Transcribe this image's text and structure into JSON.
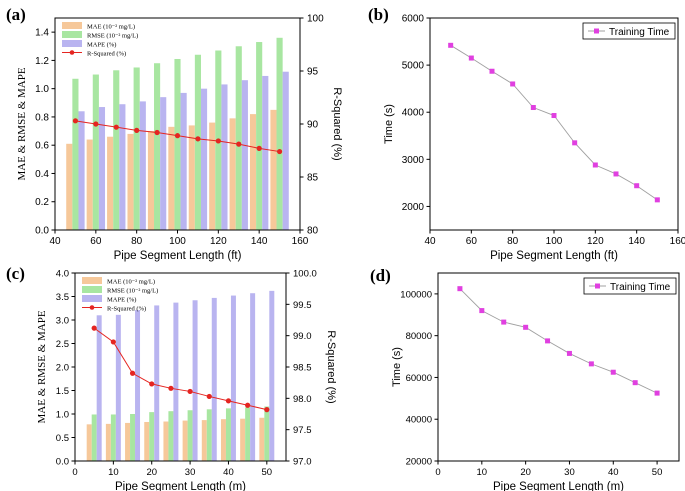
{
  "chart_data": [
    {
      "panel": "(a)",
      "type": "bar",
      "xlabel": "Pipe Segment Length (ft)",
      "ylabel": "MAE & RMSE & MAPE",
      "y2label": "R-Squared (%)",
      "xlim": [
        40,
        160
      ],
      "xticks": [
        40,
        60,
        80,
        100,
        120,
        140,
        160
      ],
      "ylim": [
        0,
        1.5
      ],
      "yticks": [
        "0.0",
        "0.2",
        "0.4",
        "0.6",
        "0.8",
        "1.0",
        "1.2",
        "1.4"
      ],
      "y2lim": [
        80,
        100
      ],
      "y2ticks": [
        "80",
        "85",
        "90",
        "95",
        "100"
      ],
      "categories": [
        50,
        60,
        70,
        80,
        90,
        100,
        110,
        120,
        130,
        140,
        150
      ],
      "bar_width": 3,
      "series": [
        {
          "name": "MAE (10⁻² mg/L)",
          "color": "#f6c89a",
          "values": [
            0.61,
            0.64,
            0.66,
            0.68,
            0.7,
            0.73,
            0.74,
            0.76,
            0.79,
            0.82,
            0.85
          ]
        },
        {
          "name": "RMSE (10⁻² mg/L)",
          "color": "#a8e6a1",
          "values": [
            1.07,
            1.1,
            1.13,
            1.15,
            1.18,
            1.21,
            1.24,
            1.27,
            1.3,
            1.33,
            1.36
          ]
        },
        {
          "name": "MAPE (%)",
          "color": "#b9b4f0",
          "values": [
            0.84,
            0.87,
            0.89,
            0.91,
            0.94,
            0.97,
            1.0,
            1.03,
            1.06,
            1.09,
            1.12
          ]
        },
        {
          "name": "R-Squared (%)",
          "color": "#e52521",
          "axis": "right",
          "type": "line",
          "values": [
            90.3,
            90.0,
            89.7,
            89.4,
            89.2,
            88.9,
            88.6,
            88.4,
            88.1,
            87.7,
            87.4
          ]
        }
      ],
      "legend": "top-left"
    },
    {
      "panel": "(b)",
      "type": "line",
      "xlabel": "Pipe Segment Length (ft)",
      "ylabel": "Time (s)",
      "xlim": [
        40,
        160
      ],
      "xticks": [
        40,
        60,
        80,
        100,
        120,
        140,
        160
      ],
      "ylim": [
        1500,
        6000
      ],
      "yticks": [
        "2000",
        "3000",
        "4000",
        "5000",
        "6000"
      ],
      "x": [
        50,
        60,
        70,
        80,
        90,
        100,
        110,
        120,
        130,
        140,
        150
      ],
      "series": [
        {
          "name": "Training Time",
          "color": "#e040e0",
          "values": [
            5420,
            5150,
            4870,
            4600,
            4100,
            3930,
            3350,
            2880,
            2690,
            2440,
            2140
          ]
        }
      ],
      "legend": "top-right"
    },
    {
      "panel": "(c)",
      "type": "bar",
      "xlabel": "Pipe Segment Length (m)",
      "ylabel": "MAE & RMSE & MAPE",
      "y2label": "R-Squared (%)",
      "xlim": [
        0,
        55
      ],
      "xticks": [
        0,
        10,
        20,
        30,
        40,
        50
      ],
      "ylim": [
        0,
        4.0
      ],
      "yticks": [
        "0.0",
        "0.5",
        "1.0",
        "1.5",
        "2.0",
        "2.5",
        "3.0",
        "3.5",
        "4.0"
      ],
      "y2lim": [
        97.0,
        100.0
      ],
      "y2ticks": [
        "97.0",
        "97.5",
        "98.0",
        "98.5",
        "99.0",
        "99.5",
        "100.0"
      ],
      "categories": [
        5,
        10,
        15,
        20,
        25,
        30,
        35,
        40,
        45,
        50
      ],
      "bar_width": 1.3,
      "series": [
        {
          "name": "MAE (10⁻² mg/L)",
          "color": "#f6c89a",
          "values": [
            0.78,
            0.79,
            0.81,
            0.83,
            0.84,
            0.86,
            0.87,
            0.89,
            0.9,
            0.92
          ]
        },
        {
          "name": "RMSE (10⁻² mg/L)",
          "color": "#a8e6a1",
          "values": [
            0.99,
            0.99,
            1.0,
            1.04,
            1.06,
            1.08,
            1.1,
            1.12,
            1.14,
            1.16
          ]
        },
        {
          "name": "MAPE (%)",
          "color": "#b9b4f0",
          "values": [
            3.1,
            3.11,
            3.21,
            3.31,
            3.37,
            3.42,
            3.47,
            3.52,
            3.57,
            3.62
          ]
        },
        {
          "name": "R-Squared (%)",
          "color": "#e52521",
          "axis": "right",
          "type": "line",
          "values": [
            99.12,
            98.9,
            98.4,
            98.23,
            98.16,
            98.11,
            98.03,
            97.96,
            97.89,
            97.82
          ]
        }
      ],
      "legend": "top-left"
    },
    {
      "panel": "(d)",
      "type": "line",
      "xlabel": "Pipe Segment Length (m)",
      "ylabel": "Time (s)",
      "xlim": [
        0,
        55
      ],
      "xticks": [
        0,
        10,
        20,
        30,
        40,
        50
      ],
      "ylim": [
        20000,
        110000
      ],
      "yticks": [
        "20000",
        "40000",
        "60000",
        "80000",
        "100000"
      ],
      "x": [
        5,
        10,
        15,
        20,
        25,
        30,
        35,
        40,
        45,
        50
      ],
      "series": [
        {
          "name": "Training Time",
          "color": "#e040e0",
          "values": [
            102500,
            92000,
            86500,
            84000,
            77500,
            71500,
            66500,
            62500,
            57500,
            52500
          ]
        }
      ],
      "legend": "top-right"
    }
  ]
}
